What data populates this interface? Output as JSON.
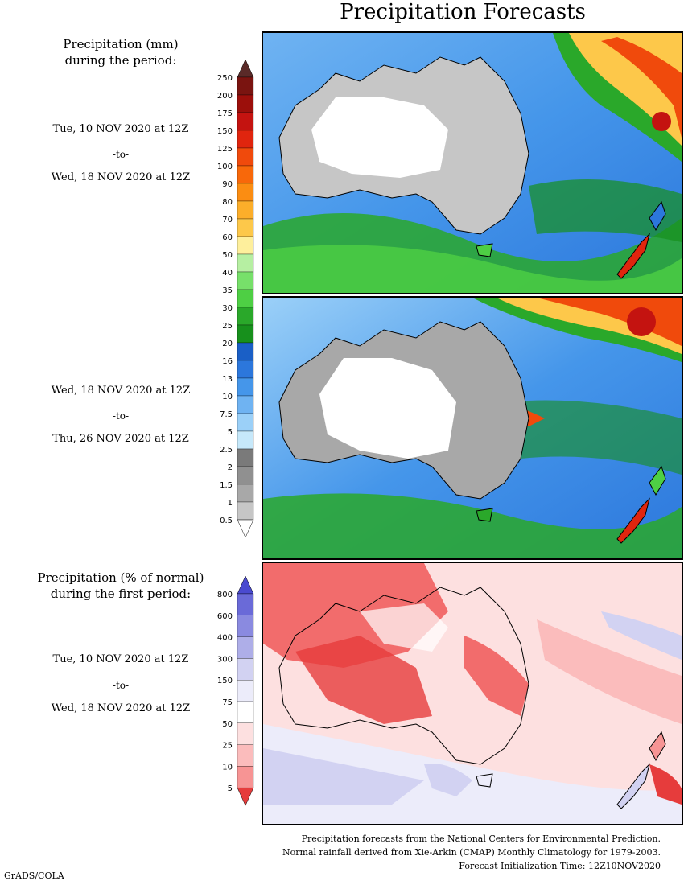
{
  "title": "Precipitation Forecasts",
  "precip_legend": {
    "heading_line1": "Precipitation (mm)",
    "heading_line2": "during the period:",
    "ticks": [
      "250",
      "200",
      "175",
      "150",
      "125",
      "100",
      "90",
      "80",
      "70",
      "60",
      "50",
      "40",
      "35",
      "30",
      "25",
      "20",
      "16",
      "13",
      "10",
      "7.5",
      "5",
      "2.5",
      "2",
      "1.5",
      "1",
      "0.5"
    ],
    "colors": [
      "#5a2a28",
      "#7a1410",
      "#9c0f0b",
      "#c41310",
      "#e0250e",
      "#f04a0c",
      "#f8680a",
      "#fb8d12",
      "#fcae2a",
      "#fdc84a",
      "#feef9c",
      "#b6efa2",
      "#77e06a",
      "#4ecf44",
      "#2aa82a",
      "#17901c",
      "#1a5fc6",
      "#2c77dc",
      "#4596ea",
      "#6fb3f2",
      "#9bd0f8",
      "#c6e8fa",
      "#7a7a7a",
      "#909090",
      "#a8a8a8",
      "#c6c6c6"
    ]
  },
  "period1": {
    "start": "Tue, 10 NOV 2020 at 12Z",
    "to": "-to-",
    "end": "Wed, 18 NOV 2020 at 12Z"
  },
  "period2": {
    "start": "Wed, 18 NOV 2020 at 12Z",
    "to": "-to-",
    "end": "Thu, 26 NOV 2020 at 12Z"
  },
  "pct_legend": {
    "heading_line1": "Precipitation (% of normal)",
    "heading_line2": "during the first period:",
    "ticks": [
      "800",
      "600",
      "400",
      "300",
      "150",
      "75",
      "50",
      "25",
      "10",
      "5"
    ],
    "colors": [
      "#6a6ad8",
      "#8a8ae0",
      "#aeaee8",
      "#d2d2f2",
      "#ececfa",
      "#ffffff",
      "#fde0e0",
      "#fbbcbc",
      "#f79494",
      "#f26c6c",
      "#e63c3c"
    ]
  },
  "period3": {
    "start": "Tue, 10 NOV 2020 at 12Z",
    "to": "-to-",
    "end": "Wed, 18 NOV 2020 at 12Z"
  },
  "footer": {
    "line1": "Precipitation forecasts from the National Centers for Environmental Prediction.",
    "line2": "Normal rainfall derived from Xie-Arkin (CMAP) Monthly Climatology for 1979-2003.",
    "line3": "Forecast Initialization Time: 12Z10NOV2020"
  },
  "credit": "GrADS/COLA"
}
